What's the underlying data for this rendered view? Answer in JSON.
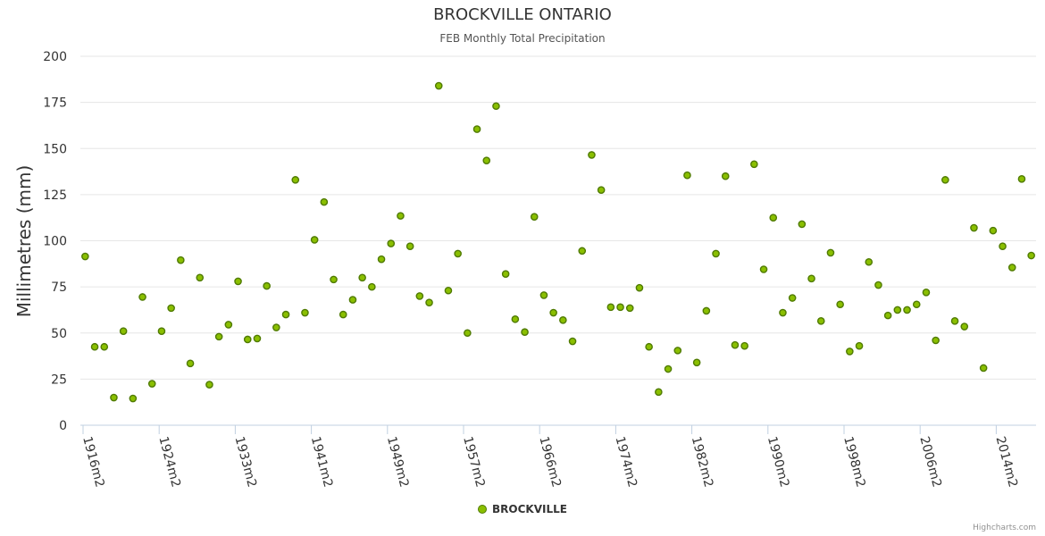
{
  "chart_data": {
    "type": "scatter",
    "title": "BROCKVILLE ONTARIO",
    "subtitle": "FEB Monthly Total Precipitation",
    "ylabel": "Millimetres (mm)",
    "xlabel": "",
    "ylim": [
      0,
      200
    ],
    "yticks": [
      0,
      25,
      50,
      75,
      100,
      125,
      150,
      175,
      200
    ],
    "xtick_labels": [
      "1916m2",
      "1924m2",
      "1933m2",
      "1941m2",
      "1949m2",
      "1957m2",
      "1966m2",
      "1974m2",
      "1982m2",
      "1990m2",
      "1998m2",
      "2006m2",
      "2014m2"
    ],
    "grid": true,
    "legend_position": "bottom-center",
    "series": [
      {
        "name": "BROCKVILLE",
        "color": "#8abf00",
        "values": [
          91.5,
          42.5,
          42.5,
          15.0,
          51.0,
          14.5,
          69.5,
          22.5,
          51.0,
          63.5,
          89.5,
          33.5,
          80.0,
          22.0,
          48.0,
          54.5,
          78.0,
          46.5,
          47.0,
          75.5,
          53.0,
          60.0,
          133.0,
          61.0,
          100.5,
          121.0,
          79.0,
          60.0,
          68.0,
          80.0,
          75.0,
          90.0,
          98.5,
          113.5,
          97.0,
          70.0,
          66.5,
          184.0,
          73.0,
          93.0,
          50.0,
          160.5,
          143.5,
          173.0,
          82.0,
          57.5,
          50.5,
          113.0,
          70.5,
          61.0,
          57.0,
          45.5,
          94.5,
          146.5,
          127.5,
          64.0,
          64.0,
          63.5,
          74.5,
          42.5,
          18.0,
          30.5,
          40.5,
          135.5,
          34.0,
          62.0,
          93.0,
          135.0,
          43.5,
          43.0,
          141.5,
          84.5,
          112.5,
          61.0,
          69.0,
          109.0,
          79.5,
          56.5,
          93.5,
          65.5,
          40.0,
          43.0,
          88.5,
          76.0,
          59.5,
          62.5,
          62.5,
          65.5,
          72.0,
          46.0,
          133.0,
          56.5,
          53.5,
          107.0,
          31.0,
          105.5,
          97.0,
          85.5,
          133.5,
          92.0
        ]
      }
    ]
  },
  "credits": "Highcharts.com"
}
